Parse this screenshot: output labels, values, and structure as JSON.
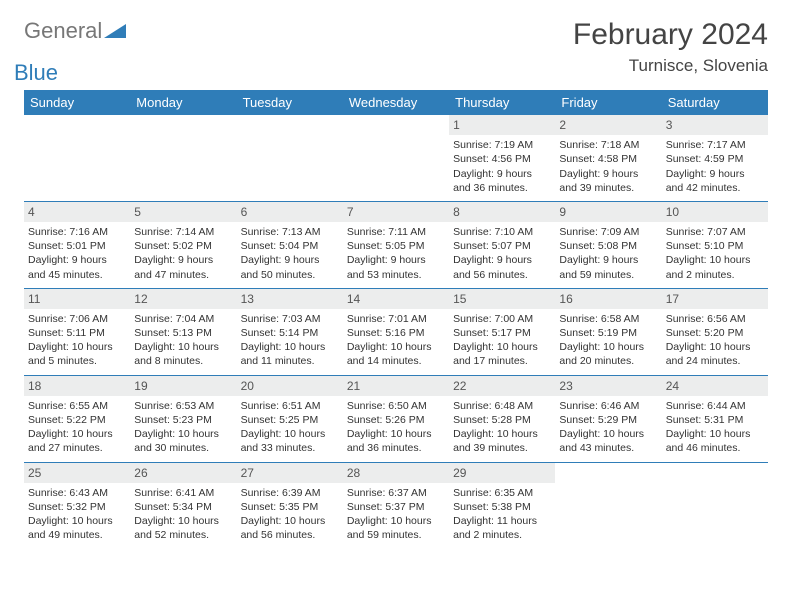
{
  "logo": {
    "text1": "General",
    "text2": "Blue"
  },
  "title": "February 2024",
  "location": "Turnisce, Slovenia",
  "colors": {
    "header_bg": "#2f7db8",
    "header_fg": "#ffffff",
    "daynum_bg": "#eceded",
    "rule": "#2f7db8",
    "page_bg": "#ffffff",
    "text": "#333333"
  },
  "day_names": [
    "Sunday",
    "Monday",
    "Tuesday",
    "Wednesday",
    "Thursday",
    "Friday",
    "Saturday"
  ],
  "weeks": [
    [
      {
        "n": "",
        "sr": "",
        "ss": "",
        "dl": ""
      },
      {
        "n": "",
        "sr": "",
        "ss": "",
        "dl": ""
      },
      {
        "n": "",
        "sr": "",
        "ss": "",
        "dl": ""
      },
      {
        "n": "",
        "sr": "",
        "ss": "",
        "dl": ""
      },
      {
        "n": "1",
        "sr": "Sunrise: 7:19 AM",
        "ss": "Sunset: 4:56 PM",
        "dl": "Daylight: 9 hours and 36 minutes."
      },
      {
        "n": "2",
        "sr": "Sunrise: 7:18 AM",
        "ss": "Sunset: 4:58 PM",
        "dl": "Daylight: 9 hours and 39 minutes."
      },
      {
        "n": "3",
        "sr": "Sunrise: 7:17 AM",
        "ss": "Sunset: 4:59 PM",
        "dl": "Daylight: 9 hours and 42 minutes."
      }
    ],
    [
      {
        "n": "4",
        "sr": "Sunrise: 7:16 AM",
        "ss": "Sunset: 5:01 PM",
        "dl": "Daylight: 9 hours and 45 minutes."
      },
      {
        "n": "5",
        "sr": "Sunrise: 7:14 AM",
        "ss": "Sunset: 5:02 PM",
        "dl": "Daylight: 9 hours and 47 minutes."
      },
      {
        "n": "6",
        "sr": "Sunrise: 7:13 AM",
        "ss": "Sunset: 5:04 PM",
        "dl": "Daylight: 9 hours and 50 minutes."
      },
      {
        "n": "7",
        "sr": "Sunrise: 7:11 AM",
        "ss": "Sunset: 5:05 PM",
        "dl": "Daylight: 9 hours and 53 minutes."
      },
      {
        "n": "8",
        "sr": "Sunrise: 7:10 AM",
        "ss": "Sunset: 5:07 PM",
        "dl": "Daylight: 9 hours and 56 minutes."
      },
      {
        "n": "9",
        "sr": "Sunrise: 7:09 AM",
        "ss": "Sunset: 5:08 PM",
        "dl": "Daylight: 9 hours and 59 minutes."
      },
      {
        "n": "10",
        "sr": "Sunrise: 7:07 AM",
        "ss": "Sunset: 5:10 PM",
        "dl": "Daylight: 10 hours and 2 minutes."
      }
    ],
    [
      {
        "n": "11",
        "sr": "Sunrise: 7:06 AM",
        "ss": "Sunset: 5:11 PM",
        "dl": "Daylight: 10 hours and 5 minutes."
      },
      {
        "n": "12",
        "sr": "Sunrise: 7:04 AM",
        "ss": "Sunset: 5:13 PM",
        "dl": "Daylight: 10 hours and 8 minutes."
      },
      {
        "n": "13",
        "sr": "Sunrise: 7:03 AM",
        "ss": "Sunset: 5:14 PM",
        "dl": "Daylight: 10 hours and 11 minutes."
      },
      {
        "n": "14",
        "sr": "Sunrise: 7:01 AM",
        "ss": "Sunset: 5:16 PM",
        "dl": "Daylight: 10 hours and 14 minutes."
      },
      {
        "n": "15",
        "sr": "Sunrise: 7:00 AM",
        "ss": "Sunset: 5:17 PM",
        "dl": "Daylight: 10 hours and 17 minutes."
      },
      {
        "n": "16",
        "sr": "Sunrise: 6:58 AM",
        "ss": "Sunset: 5:19 PM",
        "dl": "Daylight: 10 hours and 20 minutes."
      },
      {
        "n": "17",
        "sr": "Sunrise: 6:56 AM",
        "ss": "Sunset: 5:20 PM",
        "dl": "Daylight: 10 hours and 24 minutes."
      }
    ],
    [
      {
        "n": "18",
        "sr": "Sunrise: 6:55 AM",
        "ss": "Sunset: 5:22 PM",
        "dl": "Daylight: 10 hours and 27 minutes."
      },
      {
        "n": "19",
        "sr": "Sunrise: 6:53 AM",
        "ss": "Sunset: 5:23 PM",
        "dl": "Daylight: 10 hours and 30 minutes."
      },
      {
        "n": "20",
        "sr": "Sunrise: 6:51 AM",
        "ss": "Sunset: 5:25 PM",
        "dl": "Daylight: 10 hours and 33 minutes."
      },
      {
        "n": "21",
        "sr": "Sunrise: 6:50 AM",
        "ss": "Sunset: 5:26 PM",
        "dl": "Daylight: 10 hours and 36 minutes."
      },
      {
        "n": "22",
        "sr": "Sunrise: 6:48 AM",
        "ss": "Sunset: 5:28 PM",
        "dl": "Daylight: 10 hours and 39 minutes."
      },
      {
        "n": "23",
        "sr": "Sunrise: 6:46 AM",
        "ss": "Sunset: 5:29 PM",
        "dl": "Daylight: 10 hours and 43 minutes."
      },
      {
        "n": "24",
        "sr": "Sunrise: 6:44 AM",
        "ss": "Sunset: 5:31 PM",
        "dl": "Daylight: 10 hours and 46 minutes."
      }
    ],
    [
      {
        "n": "25",
        "sr": "Sunrise: 6:43 AM",
        "ss": "Sunset: 5:32 PM",
        "dl": "Daylight: 10 hours and 49 minutes."
      },
      {
        "n": "26",
        "sr": "Sunrise: 6:41 AM",
        "ss": "Sunset: 5:34 PM",
        "dl": "Daylight: 10 hours and 52 minutes."
      },
      {
        "n": "27",
        "sr": "Sunrise: 6:39 AM",
        "ss": "Sunset: 5:35 PM",
        "dl": "Daylight: 10 hours and 56 minutes."
      },
      {
        "n": "28",
        "sr": "Sunrise: 6:37 AM",
        "ss": "Sunset: 5:37 PM",
        "dl": "Daylight: 10 hours and 59 minutes."
      },
      {
        "n": "29",
        "sr": "Sunrise: 6:35 AM",
        "ss": "Sunset: 5:38 PM",
        "dl": "Daylight: 11 hours and 2 minutes."
      },
      {
        "n": "",
        "sr": "",
        "ss": "",
        "dl": ""
      },
      {
        "n": "",
        "sr": "",
        "ss": "",
        "dl": ""
      }
    ]
  ]
}
